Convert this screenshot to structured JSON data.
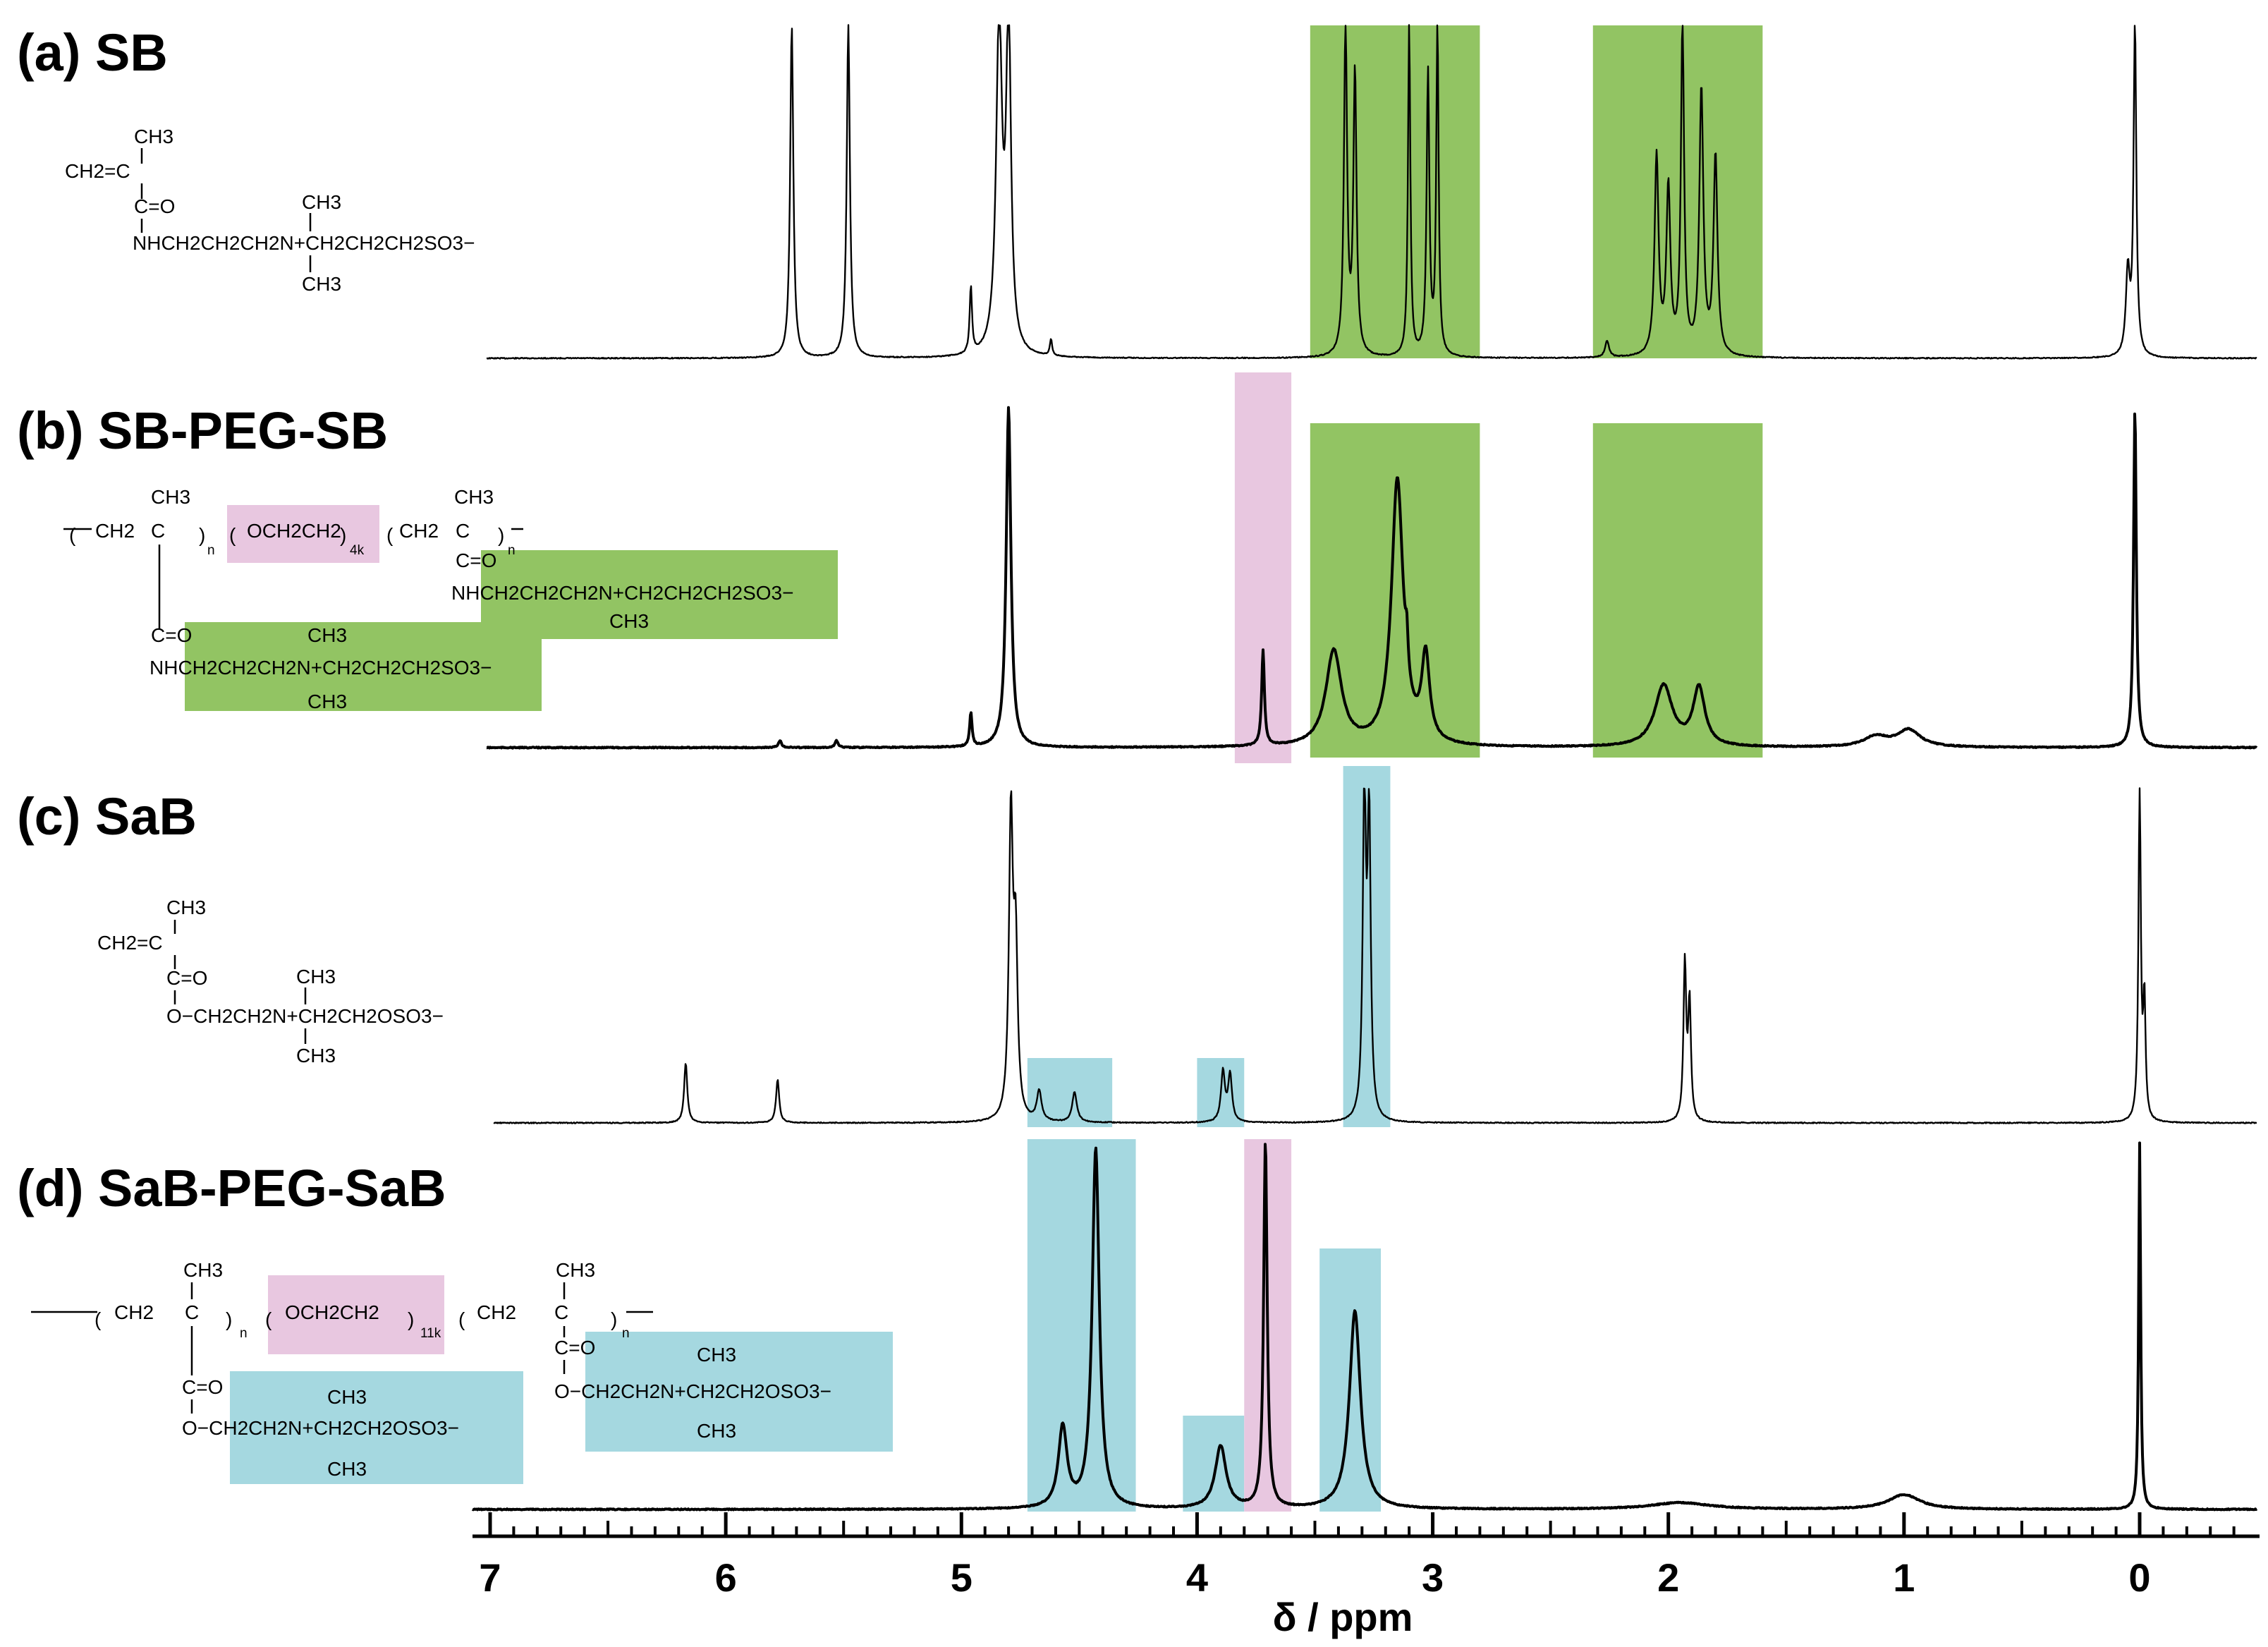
{
  "colors": {
    "green": "#92c463",
    "pink": "#e8c7e0",
    "blue": "#a5d8e0",
    "line": "#000000"
  },
  "chart_data": {
    "type": "line",
    "xlabel": "δ / ppm",
    "xlim": [
      7.2,
      -0.5
    ],
    "xticks": [
      "7",
      "6",
      "5",
      "4",
      "3",
      "2",
      "1",
      "0"
    ],
    "panels": [
      {
        "label": "(a) SB",
        "structure": [
          "CH3",
          "CH2=C",
          "C=O",
          "NHCH2CH2CH2N+CH2CH2CH2SO3−",
          "CH3",
          "CH3"
        ],
        "highlights": [
          {
            "color": "green",
            "x_from": 3.52,
            "x_to": 2.8
          },
          {
            "color": "green",
            "x_from": 2.32,
            "x_to": 1.6
          }
        ],
        "peaks": [
          {
            "ppm": 5.72,
            "height": 1.0,
            "width": 0.008
          },
          {
            "ppm": 5.48,
            "height": 1.0,
            "width": 0.008
          },
          {
            "ppm": 4.84,
            "height": 1.0,
            "width": 0.015
          },
          {
            "ppm": 4.8,
            "height": 1.0,
            "width": 0.012
          },
          {
            "ppm": 4.96,
            "height": 0.2,
            "width": 0.006
          },
          {
            "ppm": 4.62,
            "height": 0.05,
            "width": 0.006
          },
          {
            "ppm": 3.37,
            "height": 1.0,
            "width": 0.008
          },
          {
            "ppm": 3.33,
            "height": 0.85,
            "width": 0.008
          },
          {
            "ppm": 3.1,
            "height": 1.0,
            "width": 0.006
          },
          {
            "ppm": 3.02,
            "height": 0.85,
            "width": 0.007
          },
          {
            "ppm": 2.98,
            "height": 1.0,
            "width": 0.006
          },
          {
            "ppm": 2.26,
            "height": 0.05,
            "width": 0.01
          },
          {
            "ppm": 2.05,
            "height": 0.6,
            "width": 0.01
          },
          {
            "ppm": 2.0,
            "height": 0.5,
            "width": 0.01
          },
          {
            "ppm": 1.94,
            "height": 1.0,
            "width": 0.008
          },
          {
            "ppm": 1.86,
            "height": 0.8,
            "width": 0.01
          },
          {
            "ppm": 1.8,
            "height": 0.6,
            "width": 0.01
          },
          {
            "ppm": 0.02,
            "height": 1.0,
            "width": 0.007
          },
          {
            "ppm": 0.05,
            "height": 0.25,
            "width": 0.01
          }
        ]
      },
      {
        "label": "(b) SB-PEG-SB",
        "structure": [
          "CH3",
          "CH2",
          "C",
          "n",
          "OCH2CH2",
          "4k",
          "CH3",
          "CH2",
          "C",
          "n",
          "C=O",
          "NHCH2CH2CH2N+CH2CH2CH2SO3−",
          "CH3",
          "C=O",
          "CH3",
          "NHCH2CH2CH2N+CH2CH2CH2SO3−",
          "CH3"
        ],
        "highlights": [
          {
            "color": "pink",
            "x_from": 3.84,
            "x_to": 3.6
          },
          {
            "color": "green",
            "x_from": 3.52,
            "x_to": 2.8
          },
          {
            "color": "green",
            "x_from": 2.32,
            "x_to": 1.6
          }
        ],
        "peaks": [
          {
            "ppm": 5.77,
            "height": 0.02,
            "width": 0.008
          },
          {
            "ppm": 5.53,
            "height": 0.02,
            "width": 0.008
          },
          {
            "ppm": 4.96,
            "height": 0.1,
            "width": 0.006
          },
          {
            "ppm": 4.8,
            "height": 1.0,
            "width": 0.012
          },
          {
            "ppm": 3.72,
            "height": 0.28,
            "width": 0.007
          },
          {
            "ppm": 3.42,
            "height": 0.28,
            "width": 0.04
          },
          {
            "ppm": 3.15,
            "height": 0.78,
            "width": 0.03
          },
          {
            "ppm": 3.11,
            "height": 0.1,
            "width": 0.006
          },
          {
            "ppm": 3.03,
            "height": 0.25,
            "width": 0.02
          },
          {
            "ppm": 2.02,
            "height": 0.18,
            "width": 0.045
          },
          {
            "ppm": 1.87,
            "height": 0.17,
            "width": 0.03
          },
          {
            "ppm": 1.12,
            "height": 0.03,
            "width": 0.06
          },
          {
            "ppm": 0.98,
            "height": 0.05,
            "width": 0.06
          },
          {
            "ppm": 0.02,
            "height": 1.0,
            "width": 0.007
          }
        ]
      },
      {
        "label": "(c) SaB",
        "structure": [
          "CH3",
          "CH2=C",
          "C=O",
          "CH3",
          "O−CH2CH2N+CH2CH2OSO3−",
          "CH3"
        ],
        "highlights": [
          {
            "color": "blue",
            "x_from": 4.72,
            "x_to": 4.36
          },
          {
            "color": "blue",
            "x_from": 4.0,
            "x_to": 3.8
          },
          {
            "color": "blue",
            "x_from": 3.38,
            "x_to": 3.18
          }
        ],
        "peaks": [
          {
            "ppm": 6.17,
            "height": 0.18,
            "width": 0.008
          },
          {
            "ppm": 5.78,
            "height": 0.13,
            "width": 0.008
          },
          {
            "ppm": 4.79,
            "height": 0.9,
            "width": 0.01
          },
          {
            "ppm": 4.77,
            "height": 0.5,
            "width": 0.01
          },
          {
            "ppm": 4.67,
            "height": 0.09,
            "width": 0.012
          },
          {
            "ppm": 4.52,
            "height": 0.09,
            "width": 0.012
          },
          {
            "ppm": 3.89,
            "height": 0.15,
            "width": 0.01
          },
          {
            "ppm": 3.86,
            "height": 0.14,
            "width": 0.01
          },
          {
            "ppm": 3.29,
            "height": 0.97,
            "width": 0.008
          },
          {
            "ppm": 3.27,
            "height": 0.9,
            "width": 0.008
          },
          {
            "ppm": 1.93,
            "height": 0.47,
            "width": 0.007
          },
          {
            "ppm": 1.91,
            "height": 0.35,
            "width": 0.007
          },
          {
            "ppm": 0.0,
            "height": 1.0,
            "width": 0.006
          },
          {
            "ppm": -0.02,
            "height": 0.35,
            "width": 0.006
          }
        ]
      },
      {
        "label": "(d) SaB-PEG-SaB",
        "structure": [
          "CH3",
          "CH2",
          "C",
          "n",
          "OCH2CH2",
          "11k",
          "CH2",
          "C",
          "n",
          "CH3",
          "C=O",
          "CH3",
          "O−CH2CH2N+CH2CH2OSO3−",
          "CH3",
          "C=O",
          "CH3",
          "O−CH2CH2N+CH2CH2OSO3−",
          "CH3"
        ],
        "highlights": [
          {
            "color": "blue",
            "x_from": 4.72,
            "x_to": 4.26
          },
          {
            "color": "blue",
            "x_from": 4.06,
            "x_to": 3.8
          },
          {
            "color": "pink",
            "x_from": 3.8,
            "x_to": 3.6
          },
          {
            "color": "blue",
            "x_from": 3.48,
            "x_to": 3.22
          }
        ],
        "peaks": [
          {
            "ppm": 4.57,
            "height": 0.22,
            "width": 0.022
          },
          {
            "ppm": 4.43,
            "height": 0.98,
            "width": 0.018
          },
          {
            "ppm": 3.9,
            "height": 0.17,
            "width": 0.028
          },
          {
            "ppm": 3.71,
            "height": 1.0,
            "width": 0.009
          },
          {
            "ppm": 3.33,
            "height": 0.54,
            "width": 0.028
          },
          {
            "ppm": 1.95,
            "height": 0.018,
            "width": 0.15
          },
          {
            "ppm": 1.0,
            "height": 0.04,
            "width": 0.08
          },
          {
            "ppm": 0.0,
            "height": 1.0,
            "width": 0.005
          }
        ]
      }
    ]
  }
}
